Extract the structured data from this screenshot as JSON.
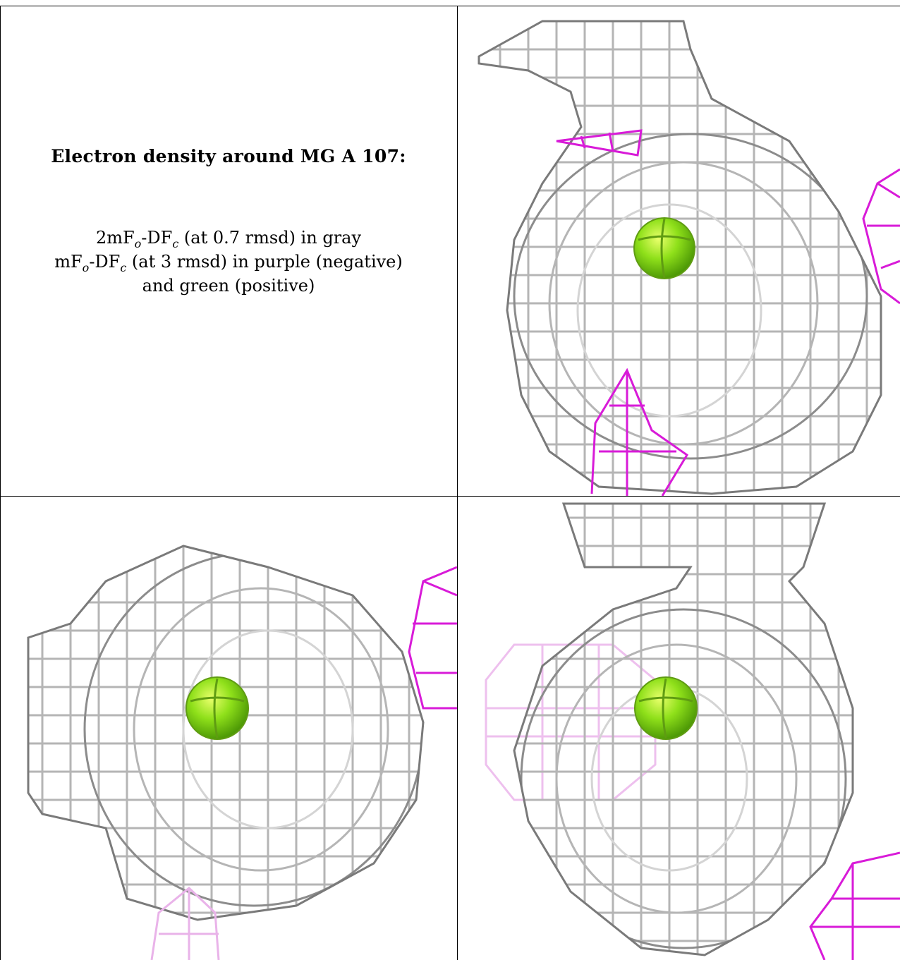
{
  "caption": {
    "title": "Electron density around MG A 107:",
    "line1": {
      "a": "2mF",
      "sub1": "o",
      "b": "-DF",
      "sub2": "c",
      "rest": " (at 0.7 rmsd) in gray"
    },
    "line2": {
      "a": "mF",
      "sub1": "o",
      "b": "-DF",
      "sub2": "c",
      "rest": " (at 3 rmsd) in purple (negative)"
    },
    "line3": "and green (positive)"
  },
  "colors": {
    "mesh_gray": "#b4b4b4",
    "mesh_dark": "#6e6e6e",
    "mesh_negative": "#d81bd8",
    "atom_green": "#8fe01a"
  },
  "icons": [
    "magnesium-atom-sphere"
  ]
}
